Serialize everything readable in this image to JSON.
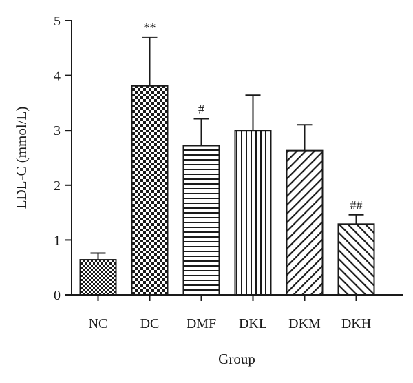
{
  "chart_data": {
    "type": "bar",
    "xlabel": "Group",
    "ylabel": "LDL-C (mmol/L)",
    "ylim": [
      0,
      5
    ],
    "yticks": [
      "0",
      "1",
      "2",
      "3",
      "4",
      "5"
    ],
    "categories": [
      "NC",
      "DC",
      "DMF",
      "DKL",
      "DKM",
      "DKH"
    ],
    "values": [
      0.64,
      3.81,
      2.72,
      3.0,
      2.63,
      1.29
    ],
    "errors": [
      0.12,
      0.89,
      0.49,
      0.64,
      0.47,
      0.17
    ],
    "annotations": [
      "",
      "**",
      "#",
      "",
      "",
      "##"
    ],
    "patterns": [
      "small-checker",
      "large-checker",
      "horizontal-lines",
      "vertical-lines",
      "diagonal-lines",
      "back-diagonal-lines"
    ],
    "grid": false,
    "legend": "none",
    "colors": {
      "ink": "#1a1a1a",
      "background": "#ffffff"
    }
  }
}
